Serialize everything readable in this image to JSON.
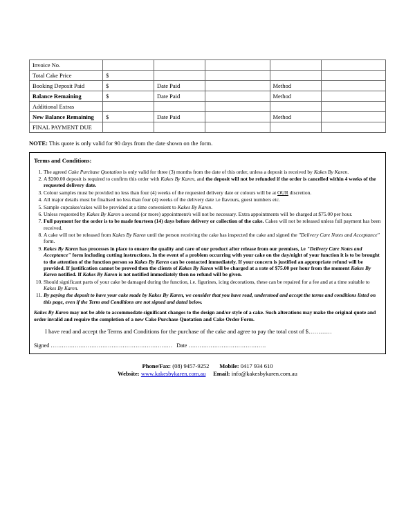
{
  "table": {
    "rows": [
      {
        "label": "Invoice No.",
        "dollar": "",
        "date_lbl": "",
        "method_lbl": "",
        "bold_label": false
      },
      {
        "label": "Total Cake Price",
        "dollar": "$",
        "date_lbl": "",
        "method_lbl": "",
        "bold_label": false
      },
      {
        "label": "Booking Deposit Paid",
        "dollar": "$",
        "date_lbl": "Date Paid",
        "method_lbl": "Method",
        "bold_label": false
      },
      {
        "label": "Balance Remaining",
        "dollar": "$",
        "date_lbl": "Date Paid",
        "method_lbl": "Method",
        "bold_label": true
      },
      {
        "label": "Additional Extras",
        "dollar": "",
        "date_lbl": "",
        "method_lbl": "",
        "bold_label": false
      },
      {
        "label": "New Balance Remaining",
        "dollar": "$",
        "date_lbl": "Date Paid",
        "method_lbl": "Method",
        "bold_label": true
      },
      {
        "label": "FINAL PAYMENT DUE",
        "dollar": "",
        "date_lbl": "",
        "method_lbl": "",
        "bold_label": false
      }
    ]
  },
  "note": {
    "prefix": "NOTE:",
    "text": "This quote is only valid for 90 days from the date shown on the form."
  },
  "terms": {
    "heading": "Terms and Conditions:",
    "items": [
      "The agreed <span class='italic'>Cake Purchase Quotation</span> is only valid for three (3) months from the date of this order, unless a deposit is received by <span class='italic'>Kakes By Karen</span>.",
      "A $200.00 deposit is required to confirm this order with <span class='italic'>Kakes By Karen</span>, and <b>the deposit will not be refunded if the order is cancelled within 4 weeks of the requested delivery date.</b>",
      "Colour samples must be provided no less than four (4) weeks of the requested delivery date or colours will be at <u>OUR</u> discretion.",
      "All major details must be finalised no less than four (4) weeks of the delivery date i.e flavours, guest numbers etc.",
      "Sample cupcakes/cakes will be provided at a time convenient to <span class='italic'>Kakes By Karen</span>.",
      "Unless requested by <span class='italic'>Kakes By Karen</span> a second (or more) appointment/s will not be necessary.  Extra appointments will be charged at $75.00 per hour.",
      "<b>Full payment for the order is to be made fourteen (14) days before delivery or collection of the cake.</b>  Cakes will not be released unless full payment has been received.",
      "A cake will not be released from <span class='italic'>Kakes By Karen</span> until the person receiving the cake has inspected the cake and signed the <span class='italic'>\"Delivery Care Notes and Acceptance\"</span> form.",
      "<b><span class='italic'>Kakes By Karen</span> has processes in place to ensure the quality and care of our product after release from our premises, i.e <span class='italic'>\"Delivery Care Notes and Acceptance\"</span> form including cutting instructions.  In the event of a problem occurring with your cake on the day/night of your function it is to be brought to the attention of the function person so <span class='italic'>Kakes By Karen</span> can be contacted immediately.  If your concern is justified an appropriate refund will be provided.  If justification cannot be proved then the clients of <span class='italic'>Kakes By Karen</span> will be charged at a rate of $75.00 per hour from the moment <span class='italic'>Kakes By Karen</span> notified. If <span class='italic'>Kakes By Karen</span> is not notified immediately then no refund will be given.</b>",
      "Should significant parts of your cake be damaged during the function, i.e. figurines, icing decorations, these can be repaired for a fee and at a time suitable to <span class='italic'>Kakes By Karen</span>.",
      "<b><span class='italic'>By paying the deposit to have your cake made by Kakes By Karen, we consider that you have read, understood and accept the terms and conditions listed on this page, even if the Term and Conditions are not signed and dated below.</span></b>"
    ],
    "footer": "<b><span class='italic'>Kakes By Karen</span> may not be able to accommodate significant changes to the design and/or style of a cake.  Such alterations may make the original quote and order invalid and require the completion of a new Cake Purchase Quotation and Cake Order Form.</b>",
    "accept": "I have read and accept the Terms and Conditions for the purchase of the cake and agree to pay the total cost of $…………",
    "sign_label": "Signed …………………………………………………………",
    "date_label": "Date ……………………………………"
  },
  "contact": {
    "phone_lbl": "Phone/Fax:",
    "phone": "(08) 9457-9252",
    "mobile_lbl": "Mobile:",
    "mobile": "0417 934 610",
    "website_lbl": "Website:",
    "website": "www.kakesbykaren.com.au",
    "email_lbl": "Email:",
    "email": "info@kakesbykaren.com.au"
  }
}
